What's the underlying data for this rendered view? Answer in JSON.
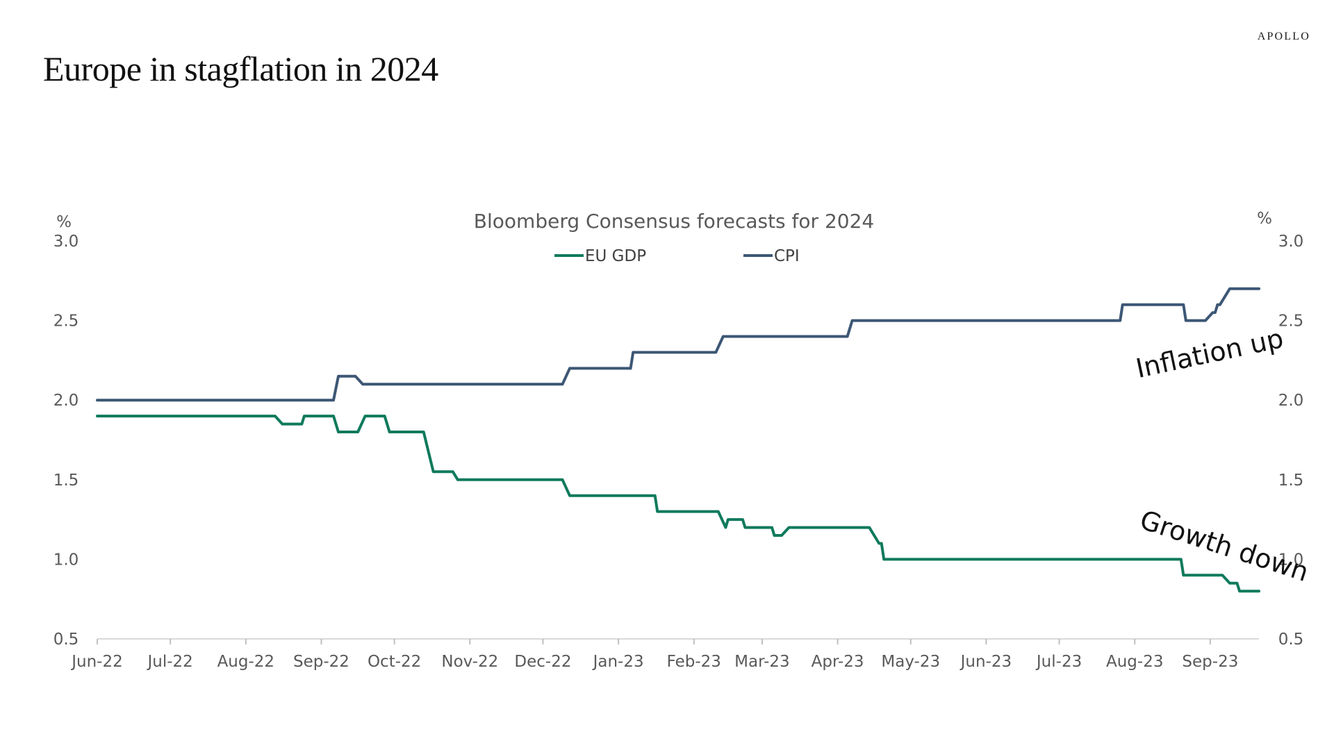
{
  "brand": "APOLLO",
  "page_title": "Europe in stagflation in 2024",
  "chart_data": {
    "type": "line",
    "title": "Bloomberg Consensus forecasts for 2024",
    "y_unit_left": "%",
    "y_unit_right": "%",
    "ylim": [
      0.5,
      3.0
    ],
    "yticks": [
      "0.5",
      "1.0",
      "1.5",
      "2.0",
      "2.5",
      "3.0"
    ],
    "xlim": [
      "2022-06-01",
      "2023-09-21"
    ],
    "xticks": [
      {
        "date": "2022-06-01",
        "label": "Jun-22"
      },
      {
        "date": "2022-07-01",
        "label": "Jul-22"
      },
      {
        "date": "2022-08-01",
        "label": "Aug-22"
      },
      {
        "date": "2022-09-01",
        "label": "Sep-22"
      },
      {
        "date": "2022-10-01",
        "label": "Oct-22"
      },
      {
        "date": "2022-11-01",
        "label": "Nov-22"
      },
      {
        "date": "2022-12-01",
        "label": "Dec-22"
      },
      {
        "date": "2023-01-01",
        "label": "Jan-23"
      },
      {
        "date": "2023-02-01",
        "label": "Feb-23"
      },
      {
        "date": "2023-03-01",
        "label": "Mar-23"
      },
      {
        "date": "2023-04-01",
        "label": "Apr-23"
      },
      {
        "date": "2023-05-01",
        "label": "May-23"
      },
      {
        "date": "2023-06-01",
        "label": "Jun-23"
      },
      {
        "date": "2023-07-01",
        "label": "Jul-23"
      },
      {
        "date": "2023-08-01",
        "label": "Aug-23"
      },
      {
        "date": "2023-09-01",
        "label": "Sep-23"
      }
    ],
    "grid": false,
    "legend_position": "top-center",
    "series": [
      {
        "name": "EU GDP",
        "color": "#0f7a5c",
        "points": [
          [
            "2022-06-01",
            1.9
          ],
          [
            "2022-08-13",
            1.9
          ],
          [
            "2022-08-16",
            1.85
          ],
          [
            "2022-08-24",
            1.85
          ],
          [
            "2022-08-25",
            1.9
          ],
          [
            "2022-09-06",
            1.9
          ],
          [
            "2022-09-08",
            1.8
          ],
          [
            "2022-09-16",
            1.8
          ],
          [
            "2022-09-19",
            1.9
          ],
          [
            "2022-09-27",
            1.9
          ],
          [
            "2022-09-29",
            1.8
          ],
          [
            "2022-10-13",
            1.8
          ],
          [
            "2022-10-17",
            1.55
          ],
          [
            "2022-10-25",
            1.55
          ],
          [
            "2022-10-27",
            1.5
          ],
          [
            "2022-12-09",
            1.5
          ],
          [
            "2022-12-12",
            1.4
          ],
          [
            "2023-01-16",
            1.4
          ],
          [
            "2023-01-17",
            1.3
          ],
          [
            "2023-02-11",
            1.3
          ],
          [
            "2023-02-14",
            1.2
          ],
          [
            "2023-02-15",
            1.25
          ],
          [
            "2023-02-21",
            1.25
          ],
          [
            "2023-02-22",
            1.2
          ],
          [
            "2023-03-05",
            1.2
          ],
          [
            "2023-03-06",
            1.15
          ],
          [
            "2023-03-09",
            1.15
          ],
          [
            "2023-03-12",
            1.2
          ],
          [
            "2023-04-14",
            1.2
          ],
          [
            "2023-04-18",
            1.1
          ],
          [
            "2023-04-19",
            1.1
          ],
          [
            "2023-04-20",
            1.0
          ],
          [
            "2023-08-20",
            1.0
          ],
          [
            "2023-08-21",
            0.9
          ],
          [
            "2023-09-06",
            0.9
          ],
          [
            "2023-09-09",
            0.85
          ],
          [
            "2023-09-12",
            0.85
          ],
          [
            "2023-09-13",
            0.8
          ],
          [
            "2023-09-21",
            0.8
          ]
        ]
      },
      {
        "name": "CPI",
        "color": "#3d5775",
        "points": [
          [
            "2022-06-01",
            2.0
          ],
          [
            "2022-09-06",
            2.0
          ],
          [
            "2022-09-08",
            2.15
          ],
          [
            "2022-09-15",
            2.15
          ],
          [
            "2022-09-18",
            2.1
          ],
          [
            "2022-12-09",
            2.1
          ],
          [
            "2022-12-12",
            2.2
          ],
          [
            "2023-01-06",
            2.2
          ],
          [
            "2023-01-07",
            2.3
          ],
          [
            "2023-02-10",
            2.3
          ],
          [
            "2023-02-13",
            2.4
          ],
          [
            "2023-04-05",
            2.4
          ],
          [
            "2023-04-07",
            2.5
          ],
          [
            "2023-07-26",
            2.5
          ],
          [
            "2023-07-27",
            2.6
          ],
          [
            "2023-08-21",
            2.6
          ],
          [
            "2023-08-22",
            2.5
          ],
          [
            "2023-08-30",
            2.5
          ],
          [
            "2023-09-02",
            2.55
          ],
          [
            "2023-09-03",
            2.55
          ],
          [
            "2023-09-04",
            2.6
          ],
          [
            "2023-09-05",
            2.6
          ],
          [
            "2023-09-09",
            2.7
          ],
          [
            "2023-09-21",
            2.7
          ]
        ]
      }
    ],
    "annotations": [
      {
        "text": "Inflation up",
        "date": "2023-08-01",
        "y": 2.14,
        "rotation": -12
      },
      {
        "text": "Growth down",
        "date": "2023-08-01",
        "y": 1.2,
        "rotation": 18
      }
    ]
  }
}
